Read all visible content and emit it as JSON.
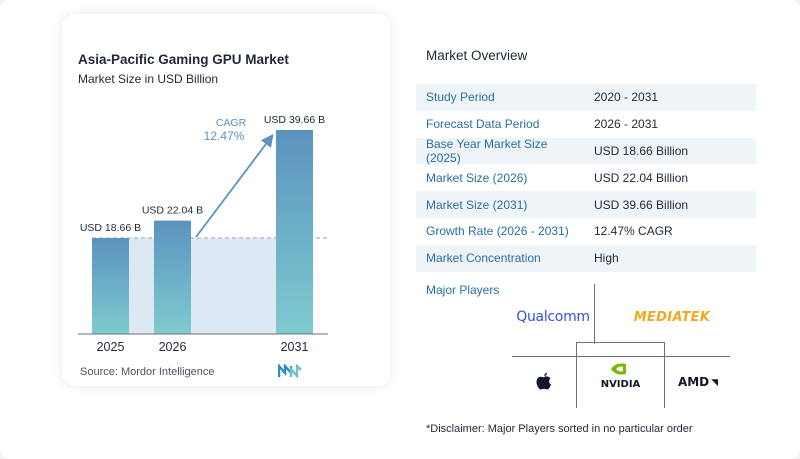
{
  "chart_data": {
    "type": "bar",
    "title": "Asia-Pacific Gaming GPU Market",
    "subtitle": "Market Size in USD Billion",
    "categories": [
      "2025",
      "2026",
      "2031"
    ],
    "values": [
      18.66,
      22.04,
      39.66
    ],
    "value_labels": [
      "USD 18.66 B",
      "USD 22.04 B",
      "USD 39.66 B"
    ],
    "ylim": [
      0,
      39.66
    ],
    "cagr_label": "CAGR",
    "cagr_value": "12.47%",
    "colors": {
      "bar_top": "#5b93bf",
      "bar_bottom": "#7ecbcf",
      "baseline_fill": "#dce8f2",
      "arrow": "#5b93bf",
      "cagr_text": "#5b93bf"
    },
    "grid": false
  },
  "source": "Source:  Mordor Intelligence",
  "overview": {
    "title": "Market Overview",
    "rows": [
      {
        "key": "Study Period",
        "value": "2020 - 2031"
      },
      {
        "key": "Forecast Data Period",
        "value": "2026 - 2031"
      },
      {
        "key": "Base Year Market Size (2025)",
        "value": "USD 18.66 Billion"
      },
      {
        "key": "Market Size (2026)",
        "value": "USD 22.04 Billion"
      },
      {
        "key": "Market Size (2031)",
        "value": "USD 39.66 Billion"
      },
      {
        "key": "Growth Rate (2026 - 2031)",
        "value": "12.47% CAGR"
      },
      {
        "key": "Market Concentration",
        "value": "High"
      }
    ]
  },
  "players": {
    "label": "Major Players",
    "logos": [
      "Qualcomm",
      "MEDIATEK",
      "Apple",
      "NVIDIA",
      "AMD"
    ]
  },
  "disclaimer": "*Disclaimer: Major Players sorted in no particular order"
}
